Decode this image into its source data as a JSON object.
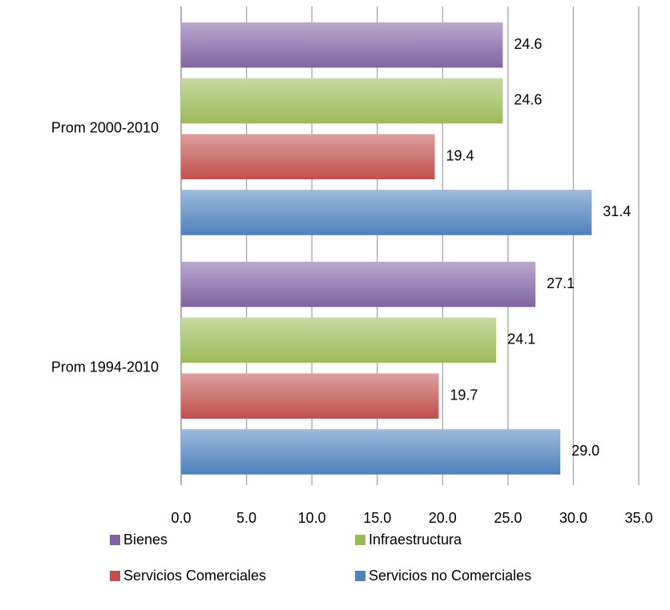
{
  "chart_data": {
    "type": "hbar",
    "categories": [
      "Prom 2000-2010",
      "Prom 1994-2010"
    ],
    "series": [
      {
        "name": "Bienes",
        "color": "#8064a2",
        "values": [
          24.6,
          27.1
        ]
      },
      {
        "name": "Infraestructura",
        "color": "#9bbb59",
        "values": [
          24.6,
          24.1
        ]
      },
      {
        "name": "Servicios Comerciales",
        "color": "#c0504d",
        "values": [
          19.4,
          19.7
        ]
      },
      {
        "name": "Servicios no Comerciales",
        "color": "#4f81bd",
        "values": [
          31.4,
          29.0
        ],
        "value_labels": [
          "31.4",
          "29.0"
        ]
      }
    ],
    "xlim": [
      0,
      35
    ],
    "xticks": [
      {
        "value": 0,
        "label": "0.0"
      },
      {
        "value": 5,
        "label": "5.0"
      },
      {
        "value": 10,
        "label": "10.0"
      },
      {
        "value": 15,
        "label": "15.0"
      },
      {
        "value": 20,
        "label": "20.0"
      },
      {
        "value": 25,
        "label": "25.0"
      },
      {
        "value": 30,
        "label": "30.0"
      },
      {
        "value": 35,
        "label": "35.0"
      }
    ],
    "grid": true,
    "legend": "bottom"
  }
}
